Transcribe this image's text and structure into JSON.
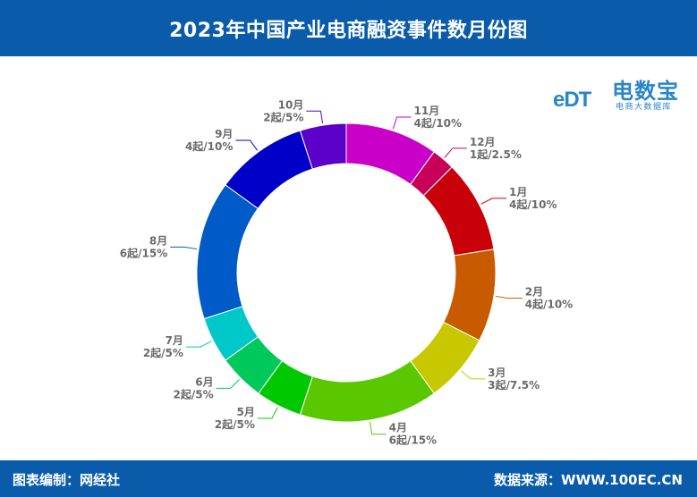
{
  "header": {
    "title": "2023年中国产业电商融资事件数月份图"
  },
  "footer": {
    "left": "图表编制：网经社",
    "right": "数据来源：WWW.100EC.CN"
  },
  "logo": {
    "mark": "eDT",
    "main": "电数宝",
    "sub": "电商大数据库"
  },
  "colors": {
    "header_bg": "#0a5cab"
  },
  "chart_data": {
    "type": "pie",
    "style": "donut",
    "title": "2023年中国产业电商融资事件数月份图",
    "unit": "起",
    "slices": [
      {
        "label": "1月",
        "value": 4,
        "percent": "10%",
        "text": "4起/10%",
        "color": "#c8000a"
      },
      {
        "label": "2月",
        "value": 4,
        "percent": "10%",
        "text": "4起/10%",
        "color": "#c85a00"
      },
      {
        "label": "3月",
        "value": 3,
        "percent": "7.5%",
        "text": "3起/7.5%",
        "color": "#c8c800"
      },
      {
        "label": "4月",
        "value": 6,
        "percent": "15%",
        "text": "6起/15%",
        "color": "#5ac800"
      },
      {
        "label": "5月",
        "value": 2,
        "percent": "5%",
        "text": "2起/5%",
        "color": "#00c800"
      },
      {
        "label": "6月",
        "value": 2,
        "percent": "5%",
        "text": "2起/5%",
        "color": "#00c85a"
      },
      {
        "label": "7月",
        "value": 2,
        "percent": "5%",
        "text": "2起/5%",
        "color": "#00c8c8"
      },
      {
        "label": "8月",
        "value": 6,
        "percent": "15%",
        "text": "6起/15%",
        "color": "#005ac8"
      },
      {
        "label": "9月",
        "value": 4,
        "percent": "10%",
        "text": "4起/10%",
        "color": "#0000c8"
      },
      {
        "label": "10月",
        "value": 2,
        "percent": "5%",
        "text": "2起/5%",
        "color": "#5a00c8"
      },
      {
        "label": "11月",
        "value": 4,
        "percent": "10%",
        "text": "4起/10%",
        "color": "#c800c8"
      },
      {
        "label": "12月",
        "value": 1,
        "percent": "2.5%",
        "text": "1起/2.5%",
        "color": "#c8005a"
      }
    ]
  }
}
